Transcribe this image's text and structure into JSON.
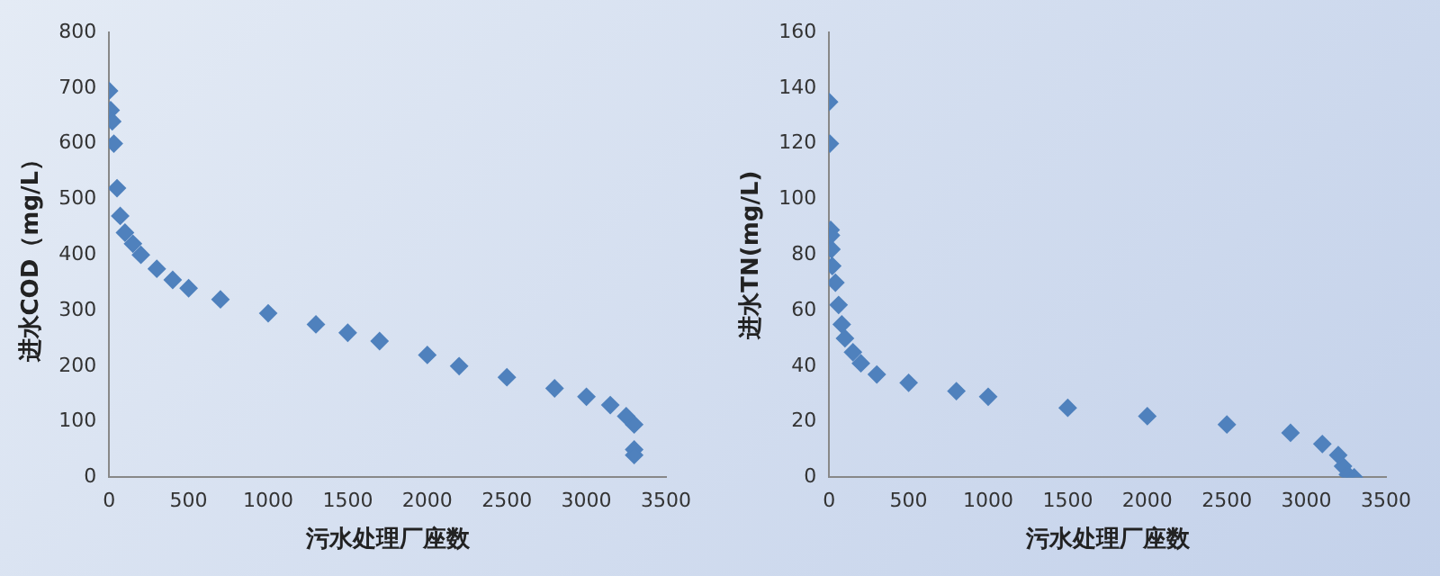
{
  "chart_data": [
    {
      "type": "scatter",
      "xlabel": "污水处理厂座数",
      "ylabel": "进水COD（mg/L）",
      "marker": "diamond",
      "grid": false,
      "legend": false,
      "xlim": [
        0,
        3500
      ],
      "xticks": [
        0,
        500,
        1000,
        1500,
        2000,
        2500,
        3000,
        3500
      ],
      "ylim": [
        0,
        800
      ],
      "yticks": [
        0,
        100,
        200,
        300,
        400,
        500,
        600,
        700,
        800
      ],
      "series": [
        {
          "color": "#4f81bd",
          "x": [
            0,
            10,
            20,
            30,
            50,
            70,
            100,
            150,
            200,
            300,
            400,
            500,
            700,
            1000,
            1300,
            1500,
            1700,
            2000,
            2200,
            2500,
            2800,
            3000,
            3150,
            3250,
            3300,
            3300,
            3300
          ],
          "values": [
            695,
            660,
            640,
            600,
            520,
            470,
            440,
            420,
            400,
            375,
            355,
            340,
            320,
            295,
            275,
            260,
            245,
            220,
            200,
            180,
            160,
            145,
            130,
            110,
            95,
            50,
            40
          ]
        }
      ]
    },
    {
      "type": "scatter",
      "xlabel": "污水处理厂座数",
      "ylabel": "进水TN(mg/L)",
      "marker": "diamond",
      "grid": false,
      "legend": false,
      "xlim": [
        0,
        3500
      ],
      "xticks": [
        0,
        500,
        1000,
        1500,
        2000,
        2500,
        3000,
        3500
      ],
      "ylim": [
        0,
        160
      ],
      "yticks": [
        0,
        20,
        40,
        60,
        80,
        100,
        120,
        140,
        160
      ],
      "series": [
        {
          "color": "#4f81bd",
          "x": [
            0,
            5,
            10,
            12,
            15,
            20,
            40,
            60,
            80,
            100,
            150,
            200,
            300,
            500,
            800,
            1000,
            1500,
            2000,
            2500,
            2900,
            3100,
            3200,
            3230,
            3260,
            3300
          ],
          "values": [
            135,
            120,
            89,
            87,
            82,
            76,
            70,
            62,
            55,
            50,
            45,
            41,
            37,
            34,
            31,
            29,
            25,
            22,
            19,
            16,
            12,
            8,
            4,
            1,
            0
          ]
        }
      ]
    }
  ]
}
